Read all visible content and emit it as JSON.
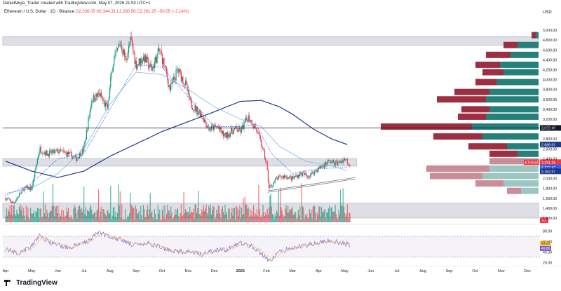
{
  "header": {
    "caption": "DanielMejia_Trader created with TradingView.com, May 07, 2026 21:53 UTC+1",
    "symbol": "Ethereum / U.S. Dollar · 1D · Binance",
    "ohlc": "O2,336.05 H2,344.31 L2,290.56 C2,291.25 −50.05 (−2.14%)",
    "currency": "USD"
  },
  "footer": {
    "brand": "TradingView"
  },
  "colors": {
    "up": "#089981",
    "down": "#f23645",
    "zone": "#d1d4dc",
    "vp_up": "#26807a",
    "vp_down": "#9c2f42",
    "ma_blue": "#1e3a8a",
    "ma_light": "#7eb6ec",
    "ma_dotted": "#2962ff",
    "rsi": "#7e57c2",
    "rsi_ma": "#f5c242"
  },
  "chart_data": {
    "type": "candlestick",
    "x_labels": [
      "Apr",
      "May",
      "Jun",
      "Jul",
      "Aug",
      "Sep",
      "Oct",
      "Nov",
      "Dec",
      "2026",
      "Feb",
      "Mar",
      "Apr",
      "May",
      "Jun",
      "Jul",
      "Aug",
      "Sep",
      "Oct",
      "Nov",
      "Dec"
    ],
    "price_ticks": [
      "5,000.00",
      "4,800.00",
      "4,600.00",
      "4,400.00",
      "4,200.00",
      "4,000.00",
      "3,800.00",
      "3,600.00",
      "3,400.00",
      "3,200.00",
      "3,000.00",
      "2,800.00",
      "2,600.00",
      "2,400.00",
      "2,200.00",
      "2,000.00",
      "1,800.00",
      "1,600.00",
      "1,400.00",
      "1,200.00"
    ],
    "ylim": [
      1100,
      5100
    ],
    "series_anchors": [
      {
        "m": 0,
        "p": 1600
      },
      {
        "m": 0.3,
        "p": 1500
      },
      {
        "m": 0.7,
        "p": 1800
      },
      {
        "m": 1.0,
        "p": 1800
      },
      {
        "m": 1.3,
        "p": 2600
      },
      {
        "m": 1.6,
        "p": 2500
      },
      {
        "m": 2.0,
        "p": 2550
      },
      {
        "m": 2.4,
        "p": 2500
      },
      {
        "m": 2.7,
        "p": 2400
      },
      {
        "m": 3.0,
        "p": 2600
      },
      {
        "m": 3.3,
        "p": 3600
      },
      {
        "m": 3.6,
        "p": 3700
      },
      {
        "m": 3.9,
        "p": 3400
      },
      {
        "m": 4.1,
        "p": 4300
      },
      {
        "m": 4.4,
        "p": 4750
      },
      {
        "m": 4.6,
        "p": 4400
      },
      {
        "m": 4.8,
        "p": 4800
      },
      {
        "m": 5.0,
        "p": 4300
      },
      {
        "m": 5.3,
        "p": 4450
      },
      {
        "m": 5.6,
        "p": 4200
      },
      {
        "m": 5.9,
        "p": 4600
      },
      {
        "m": 6.1,
        "p": 4250
      },
      {
        "m": 6.3,
        "p": 3800
      },
      {
        "m": 6.6,
        "p": 4200
      },
      {
        "m": 6.9,
        "p": 3900
      },
      {
        "m": 7.1,
        "p": 3500
      },
      {
        "m": 7.5,
        "p": 3300
      },
      {
        "m": 7.8,
        "p": 3000
      },
      {
        "m": 8.1,
        "p": 3050
      },
      {
        "m": 8.4,
        "p": 2850
      },
      {
        "m": 8.8,
        "p": 3000
      },
      {
        "m": 9.0,
        "p": 2950
      },
      {
        "m": 9.3,
        "p": 3250
      },
      {
        "m": 9.6,
        "p": 3000
      },
      {
        "m": 9.8,
        "p": 2700
      },
      {
        "m": 10.0,
        "p": 2300
      },
      {
        "m": 10.1,
        "p": 1800
      },
      {
        "m": 10.4,
        "p": 2000
      },
      {
        "m": 10.7,
        "p": 2050
      },
      {
        "m": 11.0,
        "p": 2000
      },
      {
        "m": 11.3,
        "p": 2100
      },
      {
        "m": 11.6,
        "p": 2050
      },
      {
        "m": 12.0,
        "p": 2200
      },
      {
        "m": 12.4,
        "p": 2350
      },
      {
        "m": 12.7,
        "p": 2300
      },
      {
        "m": 13.0,
        "p": 2400
      },
      {
        "m": 13.2,
        "p": 2291.25
      }
    ],
    "zones": [
      {
        "from": 4700,
        "to": 4870
      },
      {
        "from": 2250,
        "to": 2400
      },
      {
        "from": 1200,
        "to": 1500
      }
    ],
    "horizontal_levels": [
      3022.49
    ],
    "price_labels": [
      {
        "text": "3,022.49",
        "price": 3022.49,
        "bg": "#131722"
      },
      {
        "text": "2,686.91",
        "price": 2686.91,
        "bg": "#1e3a8a"
      },
      {
        "text": "2,291.25",
        "price": 2330,
        "bg": "#f23645",
        "tag": "ETHUSD"
      },
      {
        "text": "2,222.42",
        "price": 2225,
        "bg": "#2962ff"
      },
      {
        "text": "2,162.37",
        "price": 2145,
        "bg": "#1e3a8a"
      }
    ],
    "ma_long": [
      {
        "m": 0,
        "p": 2350
      },
      {
        "m": 1,
        "p": 2150
      },
      {
        "m": 2,
        "p": 2020
      },
      {
        "m": 3,
        "p": 2150
      },
      {
        "m": 4,
        "p": 2450
      },
      {
        "m": 5,
        "p": 2700
      },
      {
        "m": 6,
        "p": 2950
      },
      {
        "m": 7,
        "p": 3150
      },
      {
        "m": 8,
        "p": 3350
      },
      {
        "m": 9,
        "p": 3560
      },
      {
        "m": 9.8,
        "p": 3580
      },
      {
        "m": 10.5,
        "p": 3450
      },
      {
        "m": 11,
        "p": 3300
      },
      {
        "m": 11.8,
        "p": 3000
      },
      {
        "m": 12.5,
        "p": 2800
      },
      {
        "m": 13.1,
        "p": 2686
      }
    ],
    "ma_mid": [
      {
        "m": 0,
        "p": 1700
      },
      {
        "m": 1,
        "p": 1800
      },
      {
        "m": 2,
        "p": 2100
      },
      {
        "m": 3,
        "p": 2600
      },
      {
        "m": 4,
        "p": 3500
      },
      {
        "m": 5,
        "p": 4150
      },
      {
        "m": 6,
        "p": 4100
      },
      {
        "m": 7,
        "p": 3800
      },
      {
        "m": 8,
        "p": 3450
      },
      {
        "m": 9,
        "p": 3200
      },
      {
        "m": 9.8,
        "p": 3050
      },
      {
        "m": 10.5,
        "p": 2650
      },
      {
        "m": 11.5,
        "p": 2350
      },
      {
        "m": 12.5,
        "p": 2250
      },
      {
        "m": 13.1,
        "p": 2162
      }
    ],
    "ma_dotted": [
      {
        "m": 0,
        "p": 1650
      },
      {
        "m": 1,
        "p": 1900
      },
      {
        "m": 2,
        "p": 2400
      },
      {
        "m": 3,
        "p": 2500
      },
      {
        "m": 4,
        "p": 3400
      },
      {
        "m": 5,
        "p": 4300
      },
      {
        "m": 6,
        "p": 4250
      },
      {
        "m": 7,
        "p": 3650
      },
      {
        "m": 8,
        "p": 3050
      },
      {
        "m": 9,
        "p": 3050
      },
      {
        "m": 9.6,
        "p": 3100
      },
      {
        "m": 10.2,
        "p": 2500
      },
      {
        "m": 11,
        "p": 2100
      },
      {
        "m": 12,
        "p": 2200
      },
      {
        "m": 13.1,
        "p": 2222
      }
    ],
    "trendlines": [
      {
        "from": {
          "m": 10.05,
          "p": 1750
        },
        "to": {
          "m": 13.4,
          "p": 2020
        }
      },
      {
        "from": {
          "m": 10.05,
          "p": 1720
        },
        "to": {
          "m": 13.4,
          "p": 1990
        }
      }
    ],
    "volume_profile": [
      {
        "p": 4900,
        "up": 4,
        "down": 6
      },
      {
        "p": 4700,
        "up": 30,
        "down": 20
      },
      {
        "p": 4500,
        "up": 40,
        "down": 35
      },
      {
        "p": 4300,
        "up": 55,
        "down": 35
      },
      {
        "p": 4150,
        "up": 50,
        "down": 30
      },
      {
        "p": 3950,
        "up": 60,
        "down": 30
      },
      {
        "p": 3750,
        "up": 70,
        "down": 50
      },
      {
        "p": 3600,
        "up": 75,
        "down": 70
      },
      {
        "p": 3400,
        "up": 70,
        "down": 40
      },
      {
        "p": 3250,
        "up": 75,
        "down": 40
      },
      {
        "p": 3050,
        "up": 95,
        "down": 130
      },
      {
        "p": 2850,
        "up": 80,
        "down": 70
      },
      {
        "p": 2650,
        "up": 45,
        "down": 55
      },
      {
        "p": 2500,
        "up": 30,
        "down": 40
      },
      {
        "p": 2350,
        "up": 20,
        "down": 50
      },
      {
        "p": 2200,
        "up": 70,
        "down": 90
      },
      {
        "p": 2050,
        "up": 80,
        "down": 75
      },
      {
        "p": 1900,
        "up": 50,
        "down": 40
      },
      {
        "p": 1750,
        "up": 25,
        "down": 20
      }
    ],
    "volume_label": "31",
    "rsi": {
      "ticks": [
        "80.00",
        "60.00",
        "40.00",
        "20.00"
      ],
      "ylim": [
        15,
        90
      ],
      "overbought": 70,
      "oversold": 30,
      "value_label": "53.37",
      "ma_label": "49.86",
      "anchors": [
        {
          "m": 0,
          "p": 45
        },
        {
          "m": 0.5,
          "p": 38
        },
        {
          "m": 1,
          "p": 50
        },
        {
          "m": 1.3,
          "p": 72
        },
        {
          "m": 1.8,
          "p": 55
        },
        {
          "m": 2.5,
          "p": 48
        },
        {
          "m": 3.2,
          "p": 62
        },
        {
          "m": 3.5,
          "p": 78
        },
        {
          "m": 4.0,
          "p": 70
        },
        {
          "m": 4.5,
          "p": 62
        },
        {
          "m": 5,
          "p": 52
        },
        {
          "m": 5.5,
          "p": 56
        },
        {
          "m": 6,
          "p": 48
        },
        {
          "m": 6.5,
          "p": 42
        },
        {
          "m": 7,
          "p": 40
        },
        {
          "m": 7.5,
          "p": 36
        },
        {
          "m": 8,
          "p": 42
        },
        {
          "m": 8.5,
          "p": 45
        },
        {
          "m": 9,
          "p": 58
        },
        {
          "m": 9.5,
          "p": 50
        },
        {
          "m": 10,
          "p": 28
        },
        {
          "m": 10.1,
          "p": 22
        },
        {
          "m": 10.5,
          "p": 40
        },
        {
          "m": 11,
          "p": 48
        },
        {
          "m": 11.5,
          "p": 52
        },
        {
          "m": 12,
          "p": 58
        },
        {
          "m": 12.5,
          "p": 62
        },
        {
          "m": 13.0,
          "p": 56
        },
        {
          "m": 13.2,
          "p": 53.37
        }
      ]
    }
  }
}
